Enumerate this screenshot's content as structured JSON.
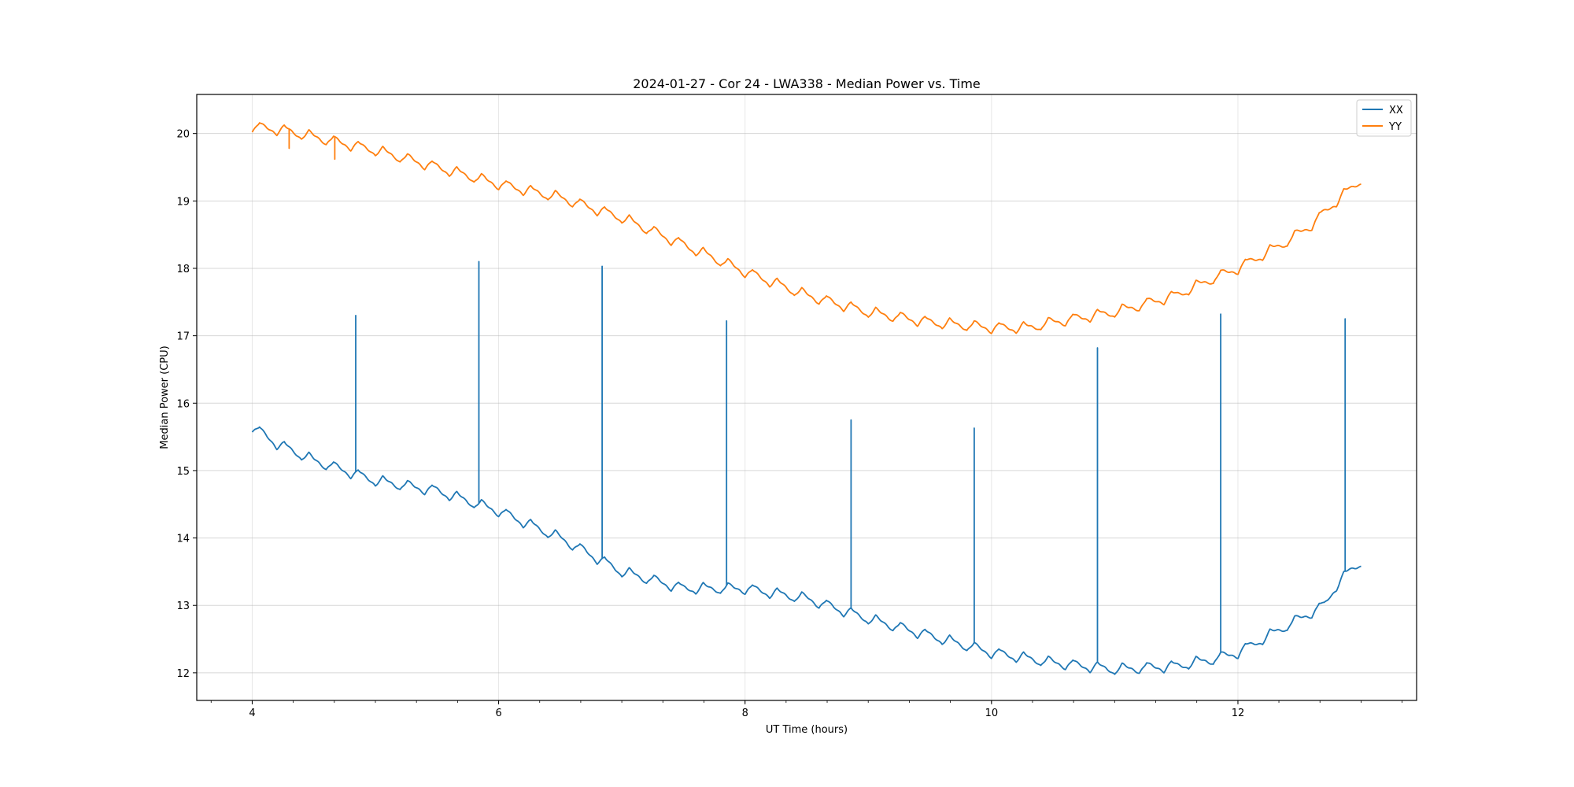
{
  "chart_data": {
    "type": "line",
    "title": "2024-01-27 - Cor 24 - LWA338 - Median Power vs. Time",
    "xlabel": "UT Time (hours)",
    "ylabel": "Median Power (CPU)",
    "xlim": [
      3.55,
      13.45
    ],
    "ylim": [
      11.59,
      20.58
    ],
    "xticks": [
      4,
      6,
      8,
      10,
      12
    ],
    "xtick_labels": [
      "4",
      "6",
      "8",
      "10",
      "12"
    ],
    "x_minor_step": 0.3333,
    "yticks": [
      12,
      13,
      14,
      15,
      16,
      17,
      18,
      19,
      20
    ],
    "ytick_labels": [
      "12",
      "13",
      "14",
      "15",
      "16",
      "17",
      "18",
      "19",
      "20"
    ],
    "grid": true,
    "legend": {
      "placement": "top-right",
      "entries": [
        "XX",
        "YY"
      ]
    },
    "series": [
      {
        "name": "XX",
        "color": "#1f77b4",
        "trend_x": [
          4.0,
          4.2,
          4.5,
          5.0,
          5.5,
          6.0,
          6.5,
          7.0,
          7.5,
          8.0,
          8.5,
          9.0,
          9.5,
          10.0,
          10.5,
          11.0,
          11.5,
          11.8,
          12.0,
          12.2,
          12.5,
          12.7,
          12.8,
          12.9,
          13.0
        ],
        "trend_y": [
          15.65,
          15.4,
          15.15,
          14.85,
          14.7,
          14.4,
          14.0,
          13.5,
          13.25,
          13.25,
          13.1,
          12.8,
          12.55,
          12.3,
          12.15,
          12.05,
          12.1,
          12.2,
          12.3,
          12.5,
          12.8,
          13.0,
          13.3,
          13.5,
          13.65
        ],
        "oscillation_period_hours": 0.2,
        "oscillation_amplitude": 0.08,
        "spikes": [
          {
            "x": 4.84,
            "y": 17.3
          },
          {
            "x": 5.84,
            "y": 18.1
          },
          {
            "x": 6.84,
            "y": 18.03
          },
          {
            "x": 7.85,
            "y": 17.22
          },
          {
            "x": 8.86,
            "y": 15.75
          },
          {
            "x": 9.86,
            "y": 15.63
          },
          {
            "x": 10.86,
            "y": 16.82
          },
          {
            "x": 11.86,
            "y": 17.32
          },
          {
            "x": 12.87,
            "y": 17.25
          }
        ]
      },
      {
        "name": "YY",
        "color": "#ff7f0e",
        "trend_x": [
          4.0,
          4.25,
          4.5,
          5.0,
          5.5,
          6.0,
          6.5,
          7.0,
          7.5,
          8.0,
          8.5,
          9.0,
          9.5,
          10.0,
          10.3,
          10.5,
          11.0,
          11.5,
          11.8,
          12.0,
          12.2,
          12.4,
          12.6,
          12.8,
          13.0
        ],
        "trend_y": [
          20.1,
          20.05,
          19.95,
          19.75,
          19.5,
          19.25,
          19.05,
          18.75,
          18.35,
          17.95,
          17.6,
          17.35,
          17.2,
          17.12,
          17.12,
          17.2,
          17.35,
          17.6,
          17.85,
          18.0,
          18.2,
          18.4,
          18.65,
          19.0,
          19.32
        ],
        "oscillation_period_hours": 0.2,
        "oscillation_amplitude": 0.08,
        "spikes": [
          {
            "x": 4.3,
            "y": 19.78
          },
          {
            "x": 4.67,
            "y": 19.62
          }
        ]
      }
    ]
  }
}
